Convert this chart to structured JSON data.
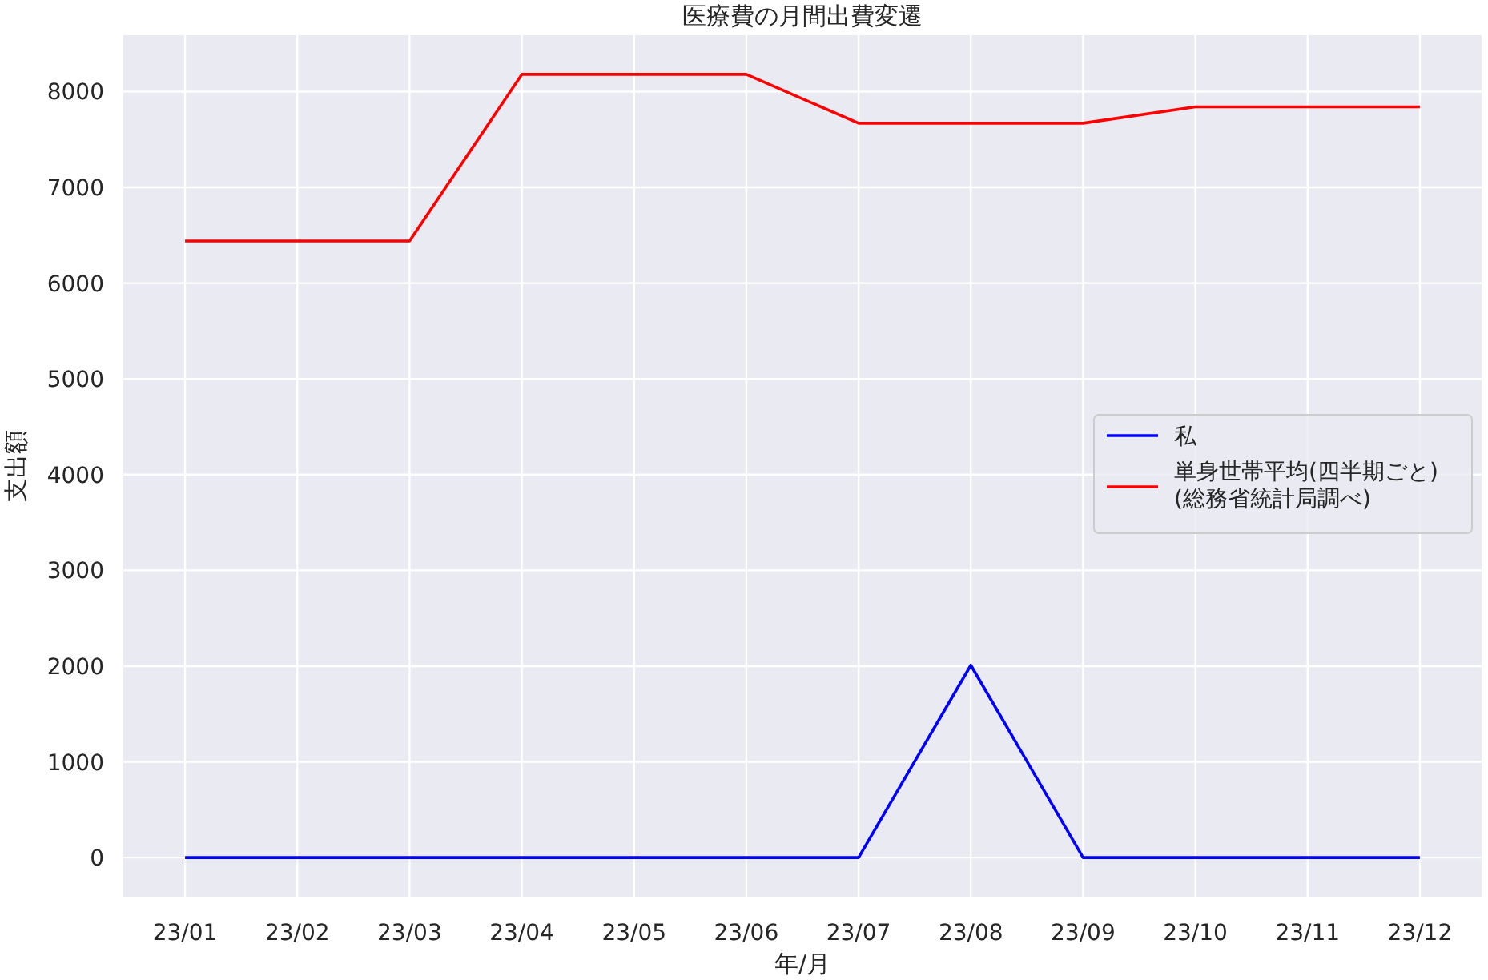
{
  "chart_data": {
    "type": "line",
    "title": "医療費の月間出費変遷",
    "xlabel": "年/月",
    "ylabel": "支出額",
    "categories": [
      "23/01",
      "23/02",
      "23/03",
      "23/04",
      "23/05",
      "23/06",
      "23/07",
      "23/08",
      "23/09",
      "23/10",
      "23/11",
      "23/12"
    ],
    "series": [
      {
        "name": "私",
        "color": "#0000ff",
        "values": [
          0,
          0,
          0,
          0,
          0,
          0,
          0,
          2010,
          0,
          0,
          0,
          0
        ]
      },
      {
        "name": "単身世帯平均(四半期ごと)\n(総務省統計局調べ)",
        "color": "#ff0000",
        "values": [
          6440,
          6440,
          6440,
          8180,
          8180,
          8180,
          7670,
          7670,
          7670,
          7840,
          7840,
          7840
        ]
      }
    ],
    "ylim": [
      -409,
      8589
    ],
    "yticks": [
      0,
      1000,
      2000,
      3000,
      4000,
      5000,
      6000,
      7000,
      8000
    ],
    "grid": true,
    "legend": "right",
    "marker": "none",
    "line_style": "solid"
  }
}
